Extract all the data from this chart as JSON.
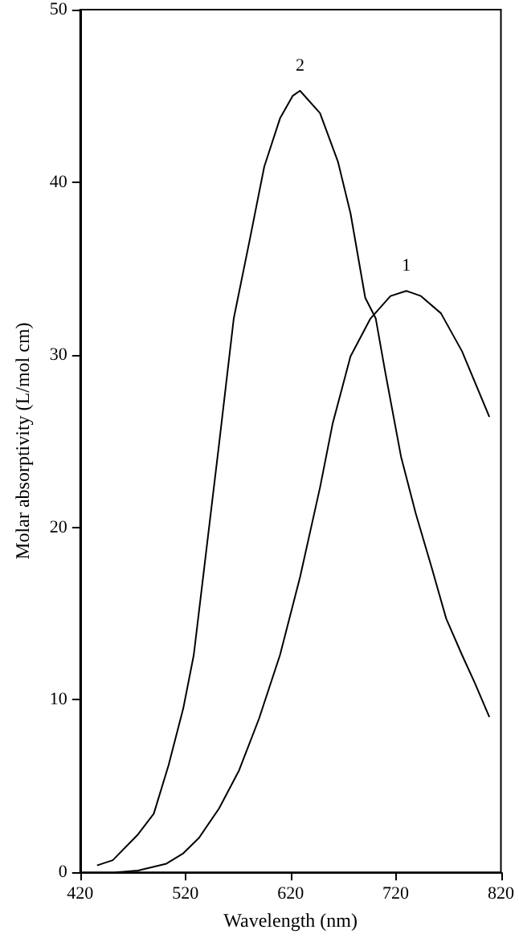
{
  "chart_data": {
    "type": "line",
    "xlabel": "Wavelength (nm)",
    "ylabel": "Molar absorptivity (L/mol cm)",
    "xlim": [
      420,
      820
    ],
    "xticks": [
      420,
      520,
      620,
      720,
      820
    ],
    "ylim": [
      0,
      50
    ],
    "yticks": [
      0,
      10,
      20,
      30,
      40,
      50
    ],
    "grid": false,
    "marker": "none",
    "line_style": "solid",
    "series": [
      {
        "name": "1",
        "color": "#000000",
        "x": [
          454,
          475,
          502,
          518,
          533,
          552,
          571,
          590,
          610,
          629,
          648,
          660,
          677,
          696,
          715,
          730,
          744,
          763,
          783,
          809
        ],
        "values": [
          0,
          0.1,
          0.5,
          1.1,
          2.0,
          3.7,
          5.9,
          8.9,
          12.6,
          17.1,
          22.3,
          26.0,
          29.9,
          32.1,
          33.4,
          33.7,
          33.4,
          32.4,
          30.2,
          26.4
        ]
      },
      {
        "name": "2",
        "color": "#000000",
        "x": [
          436,
          451,
          475,
          490,
          504,
          518,
          528,
          540,
          552,
          566,
          581,
          595,
          610,
          622,
          629,
          648,
          665,
          677,
          691,
          701,
          710,
          725,
          739,
          754,
          768,
          783,
          795,
          809
        ],
        "values": [
          0.4,
          0.7,
          2.2,
          3.4,
          6.2,
          9.5,
          12.6,
          18.7,
          24.8,
          32.1,
          36.6,
          40.9,
          43.7,
          45.0,
          45.3,
          44.0,
          41.2,
          38.2,
          33.3,
          32.1,
          29.0,
          24.1,
          20.8,
          17.7,
          14.7,
          12.6,
          11.0,
          9.0
        ]
      }
    ]
  }
}
